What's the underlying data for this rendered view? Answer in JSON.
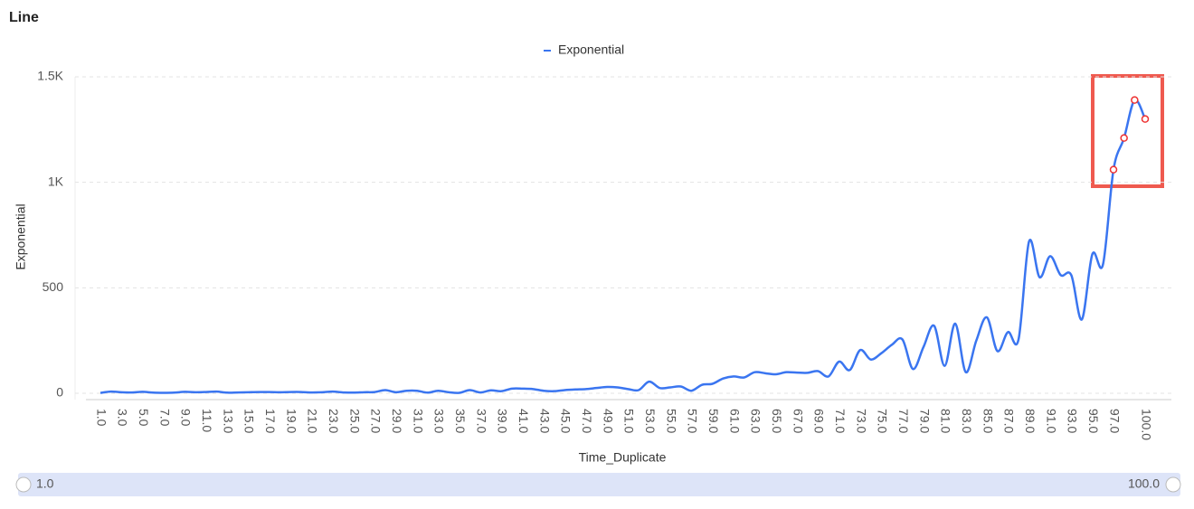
{
  "header": {
    "title": "Line"
  },
  "chart_data": {
    "type": "line",
    "x_label": "Time_Duplicate",
    "y_label": "Exponential",
    "categories": [
      "1.0",
      null,
      "3.0",
      null,
      "5.0",
      null,
      "7.0",
      null,
      "9.0",
      null,
      "11.0",
      null,
      "13.0",
      null,
      "15.0",
      null,
      "17.0",
      null,
      "19.0",
      null,
      "21.0",
      null,
      "23.0",
      null,
      "25.0",
      null,
      "27.0",
      null,
      "29.0",
      null,
      "31.0",
      null,
      "33.0",
      null,
      "35.0",
      null,
      "37.0",
      null,
      "39.0",
      null,
      "41.0",
      null,
      "43.0",
      null,
      "45.0",
      null,
      "47.0",
      null,
      "49.0",
      null,
      "51.0",
      null,
      "53.0",
      null,
      "55.0",
      null,
      "57.0",
      null,
      "59.0",
      null,
      "61.0",
      null,
      "63.0",
      null,
      "65.0",
      null,
      "67.0",
      null,
      "69.0",
      null,
      "71.0",
      null,
      "73.0",
      null,
      "75.0",
      null,
      "77.0",
      null,
      "79.0",
      null,
      "81.0",
      null,
      "83.0",
      null,
      "85.0",
      null,
      "87.0",
      null,
      "89.0",
      null,
      "91.0",
      null,
      "93.0",
      null,
      "95.0",
      null,
      "97.0",
      null,
      null,
      "100.0"
    ],
    "series": [
      {
        "name": "Exponential",
        "color": "#3a75f0",
        "values": [
          2,
          8,
          5,
          4,
          7,
          3,
          2,
          3,
          7,
          5,
          6,
          8,
          3,
          4,
          5,
          6,
          6,
          5,
          6,
          6,
          4,
          5,
          8,
          4,
          3,
          5,
          6,
          15,
          5,
          12,
          12,
          3,
          12,
          5,
          2,
          15,
          4,
          14,
          10,
          22,
          22,
          20,
          12,
          10,
          15,
          18,
          20,
          25,
          30,
          28,
          20,
          15,
          55,
          25,
          28,
          32,
          12,
          40,
          45,
          70,
          80,
          75,
          100,
          95,
          90,
          100,
          98,
          97,
          105,
          80,
          150,
          110,
          205,
          160,
          190,
          230,
          255,
          115,
          220,
          320,
          130,
          330,
          100,
          250,
          360,
          200,
          290,
          255,
          720,
          550,
          650,
          560,
          560,
          350,
          660,
          610,
          1060,
          1210,
          1390,
          1300
        ]
      }
    ],
    "ylim": [
      0,
      1500
    ],
    "yticks": [
      0,
      500,
      {
        "value": 1000,
        "label": "1K"
      },
      {
        "value": 1500,
        "label": "1.5K"
      }
    ],
    "grid": true
  },
  "data_zoom": {
    "start": "1.0",
    "end": "100.0"
  }
}
